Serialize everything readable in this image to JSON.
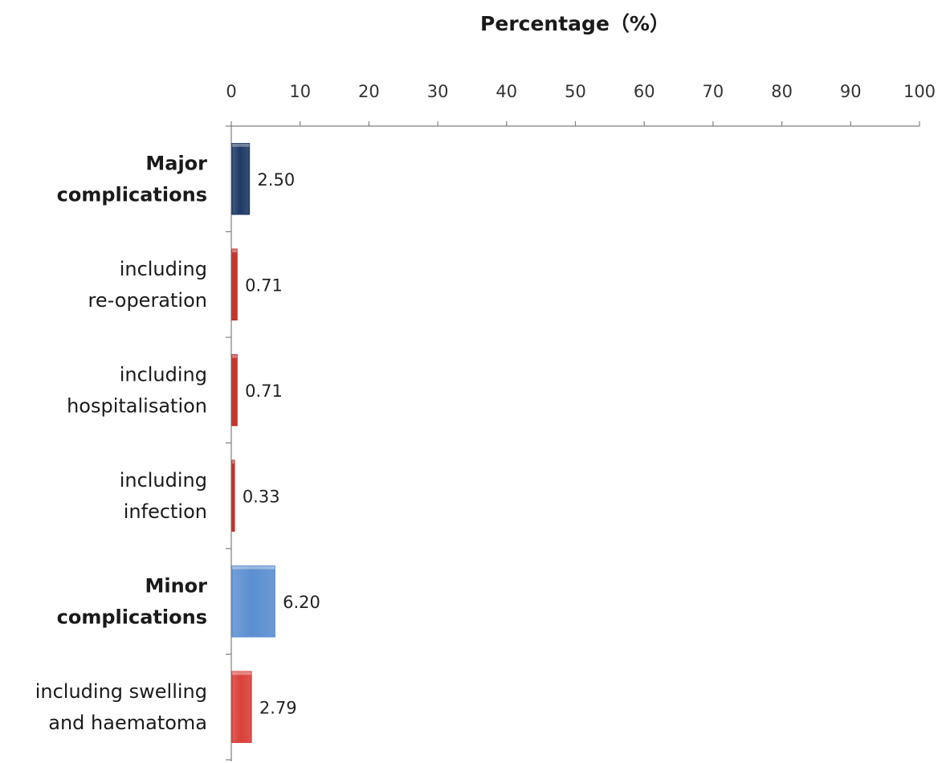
{
  "chart_data": {
    "type": "bar",
    "orientation": "horizontal",
    "title": "",
    "xlabel": "Percentage（%）",
    "ylabel": "",
    "xlim": [
      0,
      100
    ],
    "x_ticks": [
      "0",
      "10",
      "20",
      "30",
      "40",
      "50",
      "60",
      "70",
      "80",
      "90",
      "100"
    ],
    "x_axis_position": "top",
    "grid": false,
    "legend": "none",
    "categories": [
      {
        "lines": [
          "Major",
          "complications"
        ],
        "bold": true
      },
      {
        "lines": [
          "including",
          "re-operation"
        ],
        "bold": false
      },
      {
        "lines": [
          "including",
          "hospitalisation"
        ],
        "bold": false
      },
      {
        "lines": [
          "including",
          "infection"
        ],
        "bold": false
      },
      {
        "lines": [
          "Minor",
          "complications"
        ],
        "bold": true
      },
      {
        "lines": [
          "including swelling",
          "and haematoma"
        ],
        "bold": false
      }
    ],
    "values": [
      2.5,
      0.71,
      0.71,
      0.33,
      6.2,
      2.79
    ],
    "data_labels": [
      "2.50",
      "0.71",
      "0.71",
      "0.33",
      "6.20",
      "2.79"
    ],
    "bar_colors": [
      "#1f3b66",
      "#c0302c",
      "#c0302c",
      "#c0302c",
      "#5b8fd0",
      "#d9413a"
    ]
  }
}
